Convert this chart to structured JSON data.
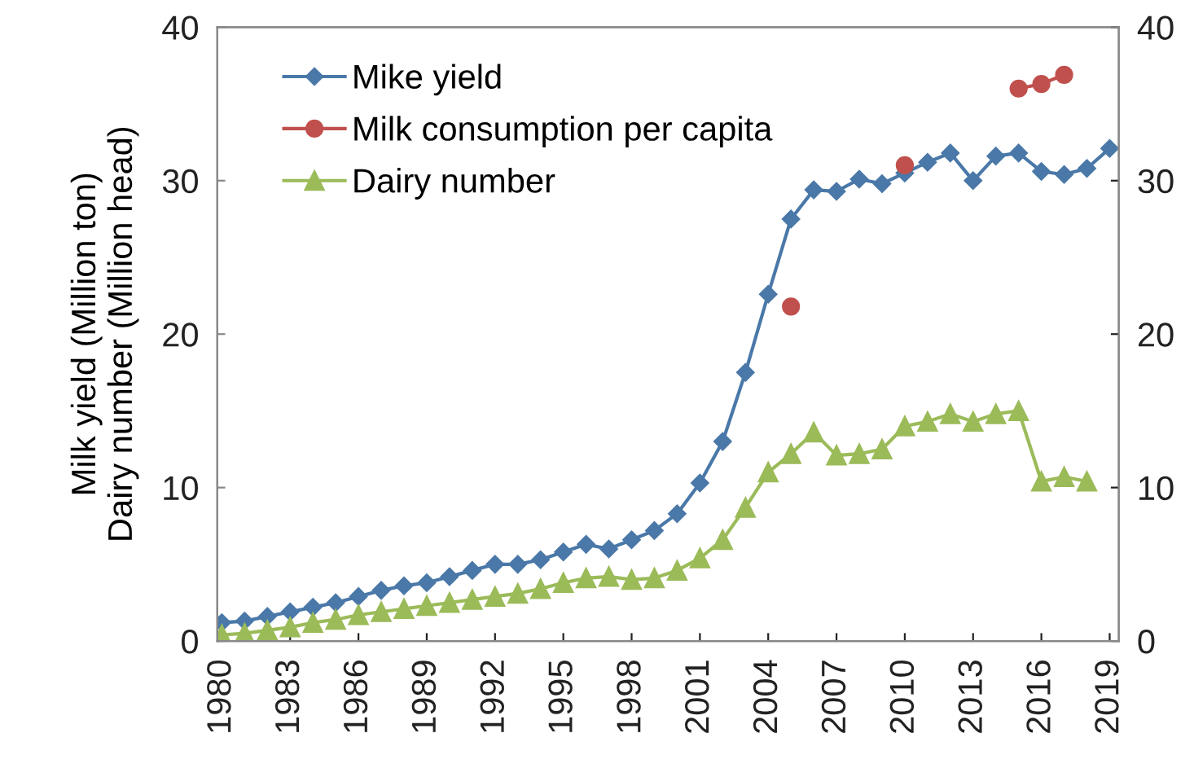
{
  "chart_data": {
    "type": "line",
    "ylabel": "Milk yield (Million ton)\nDairy number (Million head)",
    "xlim": [
      1979.8,
      2019.4
    ],
    "xticks": [
      1980,
      1983,
      1986,
      1989,
      1992,
      1995,
      1998,
      2001,
      2004,
      2007,
      2010,
      2013,
      2016,
      2019
    ],
    "ylim": [
      0,
      40
    ],
    "yticks": [
      0,
      10,
      20,
      30,
      40
    ],
    "y2lim": [
      0,
      40
    ],
    "y2ticks": [
      0,
      10,
      20,
      30,
      40
    ],
    "legend": "top left",
    "grid": false,
    "series": [
      {
        "name": "Mike yield",
        "color": "#4a78a8",
        "marker": "diamond",
        "x": [
          1980,
          1981,
          1982,
          1983,
          1984,
          1985,
          1986,
          1987,
          1988,
          1989,
          1990,
          1991,
          1992,
          1993,
          1994,
          1995,
          1996,
          1997,
          1998,
          1999,
          2000,
          2001,
          2002,
          2003,
          2004,
          2005,
          2006,
          2007,
          2008,
          2009,
          2010,
          2011,
          2012,
          2013,
          2014,
          2015,
          2016,
          2017,
          2018,
          2019
        ],
        "values": [
          1.2,
          1.3,
          1.6,
          1.9,
          2.2,
          2.5,
          2.9,
          3.3,
          3.6,
          3.8,
          4.2,
          4.6,
          5.0,
          5.0,
          5.3,
          5.8,
          6.3,
          6.0,
          6.6,
          7.2,
          8.3,
          10.3,
          13.0,
          17.5,
          22.6,
          27.5,
          29.4,
          29.3,
          30.1,
          29.8,
          30.5,
          31.2,
          31.8,
          30.0,
          31.6,
          31.8,
          30.6,
          30.4,
          30.8,
          32.1
        ]
      },
      {
        "name": "Milk consumption per capita",
        "color": "#c0504d",
        "marker": "circle",
        "x": [
          2005,
          2006,
          2007,
          2008,
          2009,
          2010,
          2011,
          2012,
          2013,
          2014,
          2015,
          2016,
          2017
        ],
        "values": [
          21.8,
          null,
          null,
          null,
          null,
          31.0,
          null,
          null,
          null,
          null,
          36.0,
          36.3,
          36.9
        ]
      },
      {
        "name": "Dairy number",
        "color": "#9bbb59",
        "marker": "triangle",
        "x": [
          1980,
          1981,
          1982,
          1983,
          1984,
          1985,
          1986,
          1987,
          1988,
          1989,
          1990,
          1991,
          1992,
          1993,
          1994,
          1995,
          1996,
          1997,
          1998,
          1999,
          2000,
          2001,
          2002,
          2003,
          2004,
          2005,
          2006,
          2007,
          2008,
          2009,
          2010,
          2011,
          2012,
          2013,
          2014,
          2015,
          2016,
          2017,
          2018
        ],
        "values": [
          0.4,
          0.5,
          0.7,
          0.9,
          1.2,
          1.4,
          1.7,
          1.9,
          2.1,
          2.3,
          2.5,
          2.7,
          2.9,
          3.1,
          3.4,
          3.8,
          4.1,
          4.2,
          4.0,
          4.1,
          4.6,
          5.4,
          6.6,
          8.7,
          11.0,
          12.2,
          13.6,
          12.1,
          12.2,
          12.5,
          14.0,
          14.3,
          14.8,
          14.3,
          14.8,
          15.0,
          10.4,
          10.7,
          10.4
        ]
      }
    ]
  }
}
